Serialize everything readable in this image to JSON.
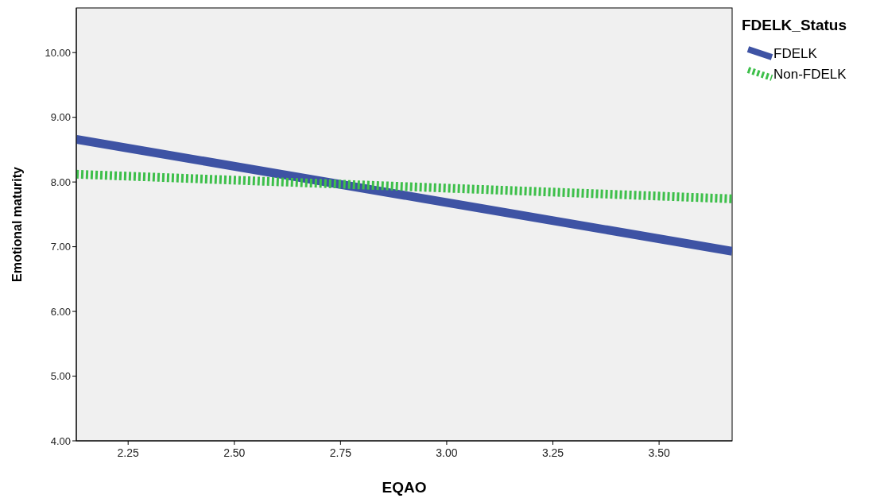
{
  "chart_data": {
    "type": "line",
    "xlabel": "EQAO",
    "ylabel": "Emotional maturity",
    "legend_title": "FDELK_Status",
    "legend": "top right",
    "xlim": [
      2.128,
      3.672
    ],
    "xticks": [
      {
        "value": 2.25,
        "label": "2.25"
      },
      {
        "value": 2.5,
        "label": "2.50"
      },
      {
        "value": 2.75,
        "label": "2.75"
      },
      {
        "value": 3,
        "label": "3.00"
      },
      {
        "value": 3.25,
        "label": "3.25"
      },
      {
        "value": 3.5,
        "label": "3.50"
      }
    ],
    "ylim": [
      4,
      10.69
    ],
    "yticks": [
      {
        "value": 4,
        "label": "4.00"
      },
      {
        "value": 5,
        "label": "5.00"
      },
      {
        "value": 6,
        "label": "6.00"
      },
      {
        "value": 7,
        "label": "7.00"
      },
      {
        "value": 8,
        "label": "8.00"
      },
      {
        "value": 9,
        "label": "9.00"
      },
      {
        "value": 10,
        "label": "10.00"
      }
    ],
    "x": [
      2.128,
      3.672
    ],
    "series": [
      {
        "name": "FDELK",
        "color": "#3e53a4",
        "values": [
          8.66,
          6.93
        ],
        "line_style": "solid"
      },
      {
        "name": "Non-FDELK",
        "color": "#3dbf4a",
        "values": [
          8.12,
          7.74
        ],
        "line_style": "dotted"
      }
    ]
  }
}
